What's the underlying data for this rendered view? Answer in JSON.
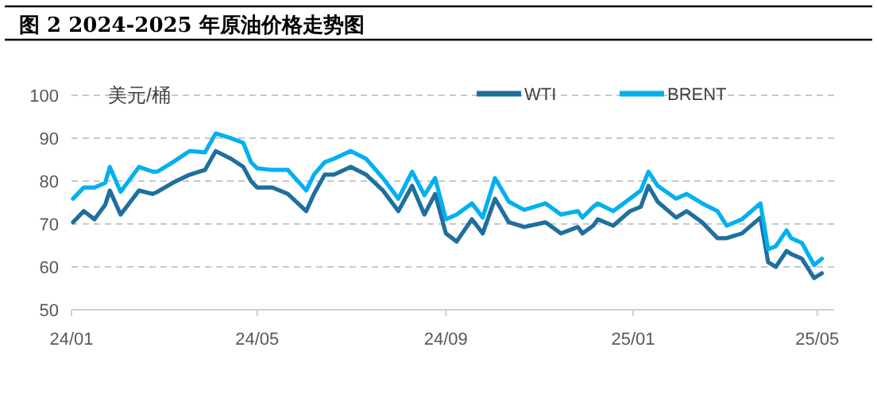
{
  "chart_data": {
    "type": "line",
    "title": "图 2 2024-2025 年原油价格走势图",
    "ylabel": "美元/桶",
    "x": [
      "2024-01-02",
      "2024-01-09",
      "2024-01-16",
      "2024-01-23",
      "2024-01-26",
      "2024-02-02",
      "2024-02-14",
      "2024-02-23",
      "2024-02-26",
      "2024-03-07",
      "2024-03-18",
      "2024-03-28",
      "2024-04-04",
      "2024-04-14",
      "2024-04-22",
      "2024-04-27",
      "2024-05-01",
      "2024-05-11",
      "2024-05-21",
      "2024-06-02",
      "2024-06-07",
      "2024-06-14",
      "2024-06-20",
      "2024-07-01",
      "2024-07-11",
      "2024-07-22",
      "2024-08-01",
      "2024-08-10",
      "2024-08-18",
      "2024-08-25",
      "2024-09-01",
      "2024-09-08",
      "2024-09-18",
      "2024-09-25",
      "2024-10-03",
      "2024-10-12",
      "2024-10-22",
      "2024-11-05",
      "2024-11-15",
      "2024-11-26",
      "2024-11-29",
      "2024-12-06",
      "2024-12-09",
      "2024-12-19",
      "2024-12-30",
      "2025-01-06",
      "2025-01-11",
      "2025-01-17",
      "2025-01-29",
      "2025-02-05",
      "2025-02-15",
      "2025-02-25",
      "2025-03-03",
      "2025-03-13",
      "2025-03-25",
      "2025-03-30",
      "2025-04-04",
      "2025-04-11",
      "2025-04-14",
      "2025-04-21",
      "2025-04-29",
      "2025-05-04"
    ],
    "series": [
      {
        "name": "WTI",
        "color": "#1f6f9e",
        "values": [
          70.4,
          73,
          71.1,
          74.5,
          77.8,
          72.2,
          77.8,
          77,
          77.5,
          79.6,
          81.5,
          82.6,
          87,
          85.2,
          83.3,
          80,
          78.5,
          78.5,
          77,
          73,
          77,
          81.5,
          81.5,
          83.3,
          81.5,
          77.8,
          73,
          78.9,
          72.2,
          77,
          67.8,
          65.9,
          71.1,
          67.8,
          75.9,
          70.4,
          69.3,
          70.4,
          67.8,
          69.3,
          67.8,
          69.6,
          71.1,
          69.6,
          73,
          74,
          78.9,
          75.2,
          71.5,
          73,
          70.4,
          66.7,
          66.7,
          67.8,
          71.5,
          61.1,
          60,
          63.7,
          63,
          61.9,
          57.4,
          58.5
        ]
      },
      {
        "name": "BRENT",
        "color": "#00b0f0",
        "values": [
          75.9,
          78.5,
          78.5,
          79.6,
          83.3,
          77.5,
          83.3,
          82.2,
          82.2,
          84.4,
          87,
          86.7,
          91.1,
          90,
          88.9,
          84.4,
          83,
          82.6,
          82.6,
          77.8,
          81.5,
          84.4,
          85.2,
          87,
          85.2,
          80.7,
          75.9,
          82.2,
          76.7,
          80.7,
          71.1,
          72.2,
          74.8,
          71.5,
          80.7,
          75.2,
          73.3,
          74.8,
          72.2,
          73,
          71.5,
          74,
          74.8,
          73,
          75.9,
          77.8,
          82.2,
          78.9,
          75.9,
          77,
          74.8,
          73,
          69.6,
          71.1,
          74.8,
          64.1,
          64.8,
          68.5,
          66.7,
          65.6,
          60.4,
          61.9
        ]
      }
    ],
    "xlim": [
      "2024-01-01",
      "2025-05-12"
    ],
    "xticks": [
      {
        "value": "2024-01-01",
        "label": "24/01"
      },
      {
        "value": "2024-05-01",
        "label": "24/05"
      },
      {
        "value": "2024-09-01",
        "label": "24/09"
      },
      {
        "value": "2025-01-01",
        "label": "25/01"
      },
      {
        "value": "2025-05-01",
        "label": "25/05"
      }
    ],
    "ylim": [
      50,
      100
    ],
    "yticks": [
      50,
      60,
      70,
      80,
      90,
      100
    ],
    "grid": "y",
    "legend": "top right",
    "marker": "none",
    "line_style": "solid"
  }
}
